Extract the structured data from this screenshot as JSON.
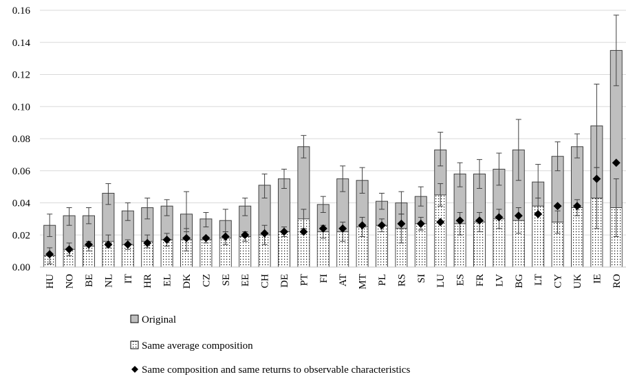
{
  "chart_data": {
    "type": "bar",
    "title": "",
    "xlabel": "",
    "ylabel": "",
    "ylim": [
      0,
      0.16
    ],
    "yticks": [
      "0.00",
      "0.02",
      "0.04",
      "0.06",
      "0.08",
      "0.10",
      "0.12",
      "0.14",
      "0.16"
    ],
    "grid": true,
    "legend_position": "bottom",
    "categories": [
      "HU",
      "NO",
      "BE",
      "NL",
      "IT",
      "HR",
      "EL",
      "DK",
      "CZ",
      "SE",
      "EE",
      "CH",
      "DE",
      "PT",
      "FI",
      "AT",
      "MT",
      "PL",
      "RS",
      "SI",
      "LU",
      "ES",
      "FR",
      "LV",
      "BG",
      "LT",
      "CY",
      "UK",
      "IE",
      "RO"
    ],
    "series": [
      {
        "name": "Original",
        "style": "gray-bar",
        "color": "#bfbfbf",
        "values": [
          0.026,
          0.032,
          0.032,
          0.046,
          0.035,
          0.037,
          0.038,
          0.033,
          0.03,
          0.029,
          0.038,
          0.051,
          0.055,
          0.075,
          0.039,
          0.055,
          0.054,
          0.041,
          0.04,
          0.044,
          0.073,
          0.058,
          0.058,
          0.061,
          0.073,
          0.053,
          0.069,
          0.075,
          0.088,
          0.135
        ],
        "err_hi": [
          0.033,
          0.037,
          0.037,
          0.052,
          0.04,
          0.043,
          0.042,
          0.047,
          0.034,
          0.036,
          0.043,
          0.058,
          0.061,
          0.082,
          0.044,
          0.063,
          0.062,
          0.046,
          0.047,
          0.05,
          0.084,
          0.065,
          0.067,
          0.071,
          0.092,
          0.064,
          0.078,
          0.083,
          0.114,
          0.157
        ],
        "err_lo": [
          0.019,
          0.026,
          0.027,
          0.039,
          0.029,
          0.03,
          0.032,
          0.022,
          0.025,
          0.022,
          0.032,
          0.043,
          0.049,
          0.068,
          0.034,
          0.047,
          0.046,
          0.036,
          0.033,
          0.038,
          0.063,
          0.05,
          0.049,
          0.051,
          0.054,
          0.043,
          0.06,
          0.068,
          0.062,
          0.113
        ]
      },
      {
        "name": "Same average composition",
        "style": "dotted-bar",
        "color": "#ffffff",
        "values": [
          0.007,
          0.011,
          0.013,
          0.016,
          0.014,
          0.016,
          0.017,
          0.017,
          0.017,
          0.018,
          0.019,
          0.02,
          0.022,
          0.03,
          0.022,
          0.022,
          0.025,
          0.026,
          0.024,
          0.027,
          0.045,
          0.027,
          0.028,
          0.03,
          0.029,
          0.038,
          0.028,
          0.037,
          0.043,
          0.037
        ],
        "err_hi": [
          0.012,
          0.015,
          0.016,
          0.02,
          0.017,
          0.02,
          0.021,
          0.024,
          0.019,
          0.022,
          0.022,
          0.026,
          0.025,
          0.036,
          0.026,
          0.028,
          0.031,
          0.03,
          0.033,
          0.031,
          0.052,
          0.034,
          0.034,
          0.036,
          0.037,
          0.043,
          0.035,
          0.042,
          0.062,
          0.055
        ],
        "err_lo": [
          0.002,
          0.007,
          0.01,
          0.012,
          0.011,
          0.012,
          0.013,
          0.01,
          0.015,
          0.014,
          0.016,
          0.014,
          0.019,
          0.024,
          0.018,
          0.016,
          0.019,
          0.022,
          0.015,
          0.023,
          0.038,
          0.02,
          0.022,
          0.024,
          0.021,
          0.033,
          0.021,
          0.032,
          0.024,
          0.019
        ]
      },
      {
        "name": "Same composition and same returns to observable characteristics",
        "style": "diamond",
        "color": "#000000",
        "values": [
          0.008,
          0.011,
          0.014,
          0.014,
          0.014,
          0.015,
          0.017,
          0.018,
          0.018,
          0.019,
          0.02,
          0.021,
          0.022,
          0.022,
          0.024,
          0.024,
          0.026,
          0.026,
          0.027,
          0.027,
          0.028,
          0.029,
          0.029,
          0.031,
          0.032,
          0.033,
          0.038,
          0.038,
          0.055,
          0.065
        ]
      }
    ]
  }
}
